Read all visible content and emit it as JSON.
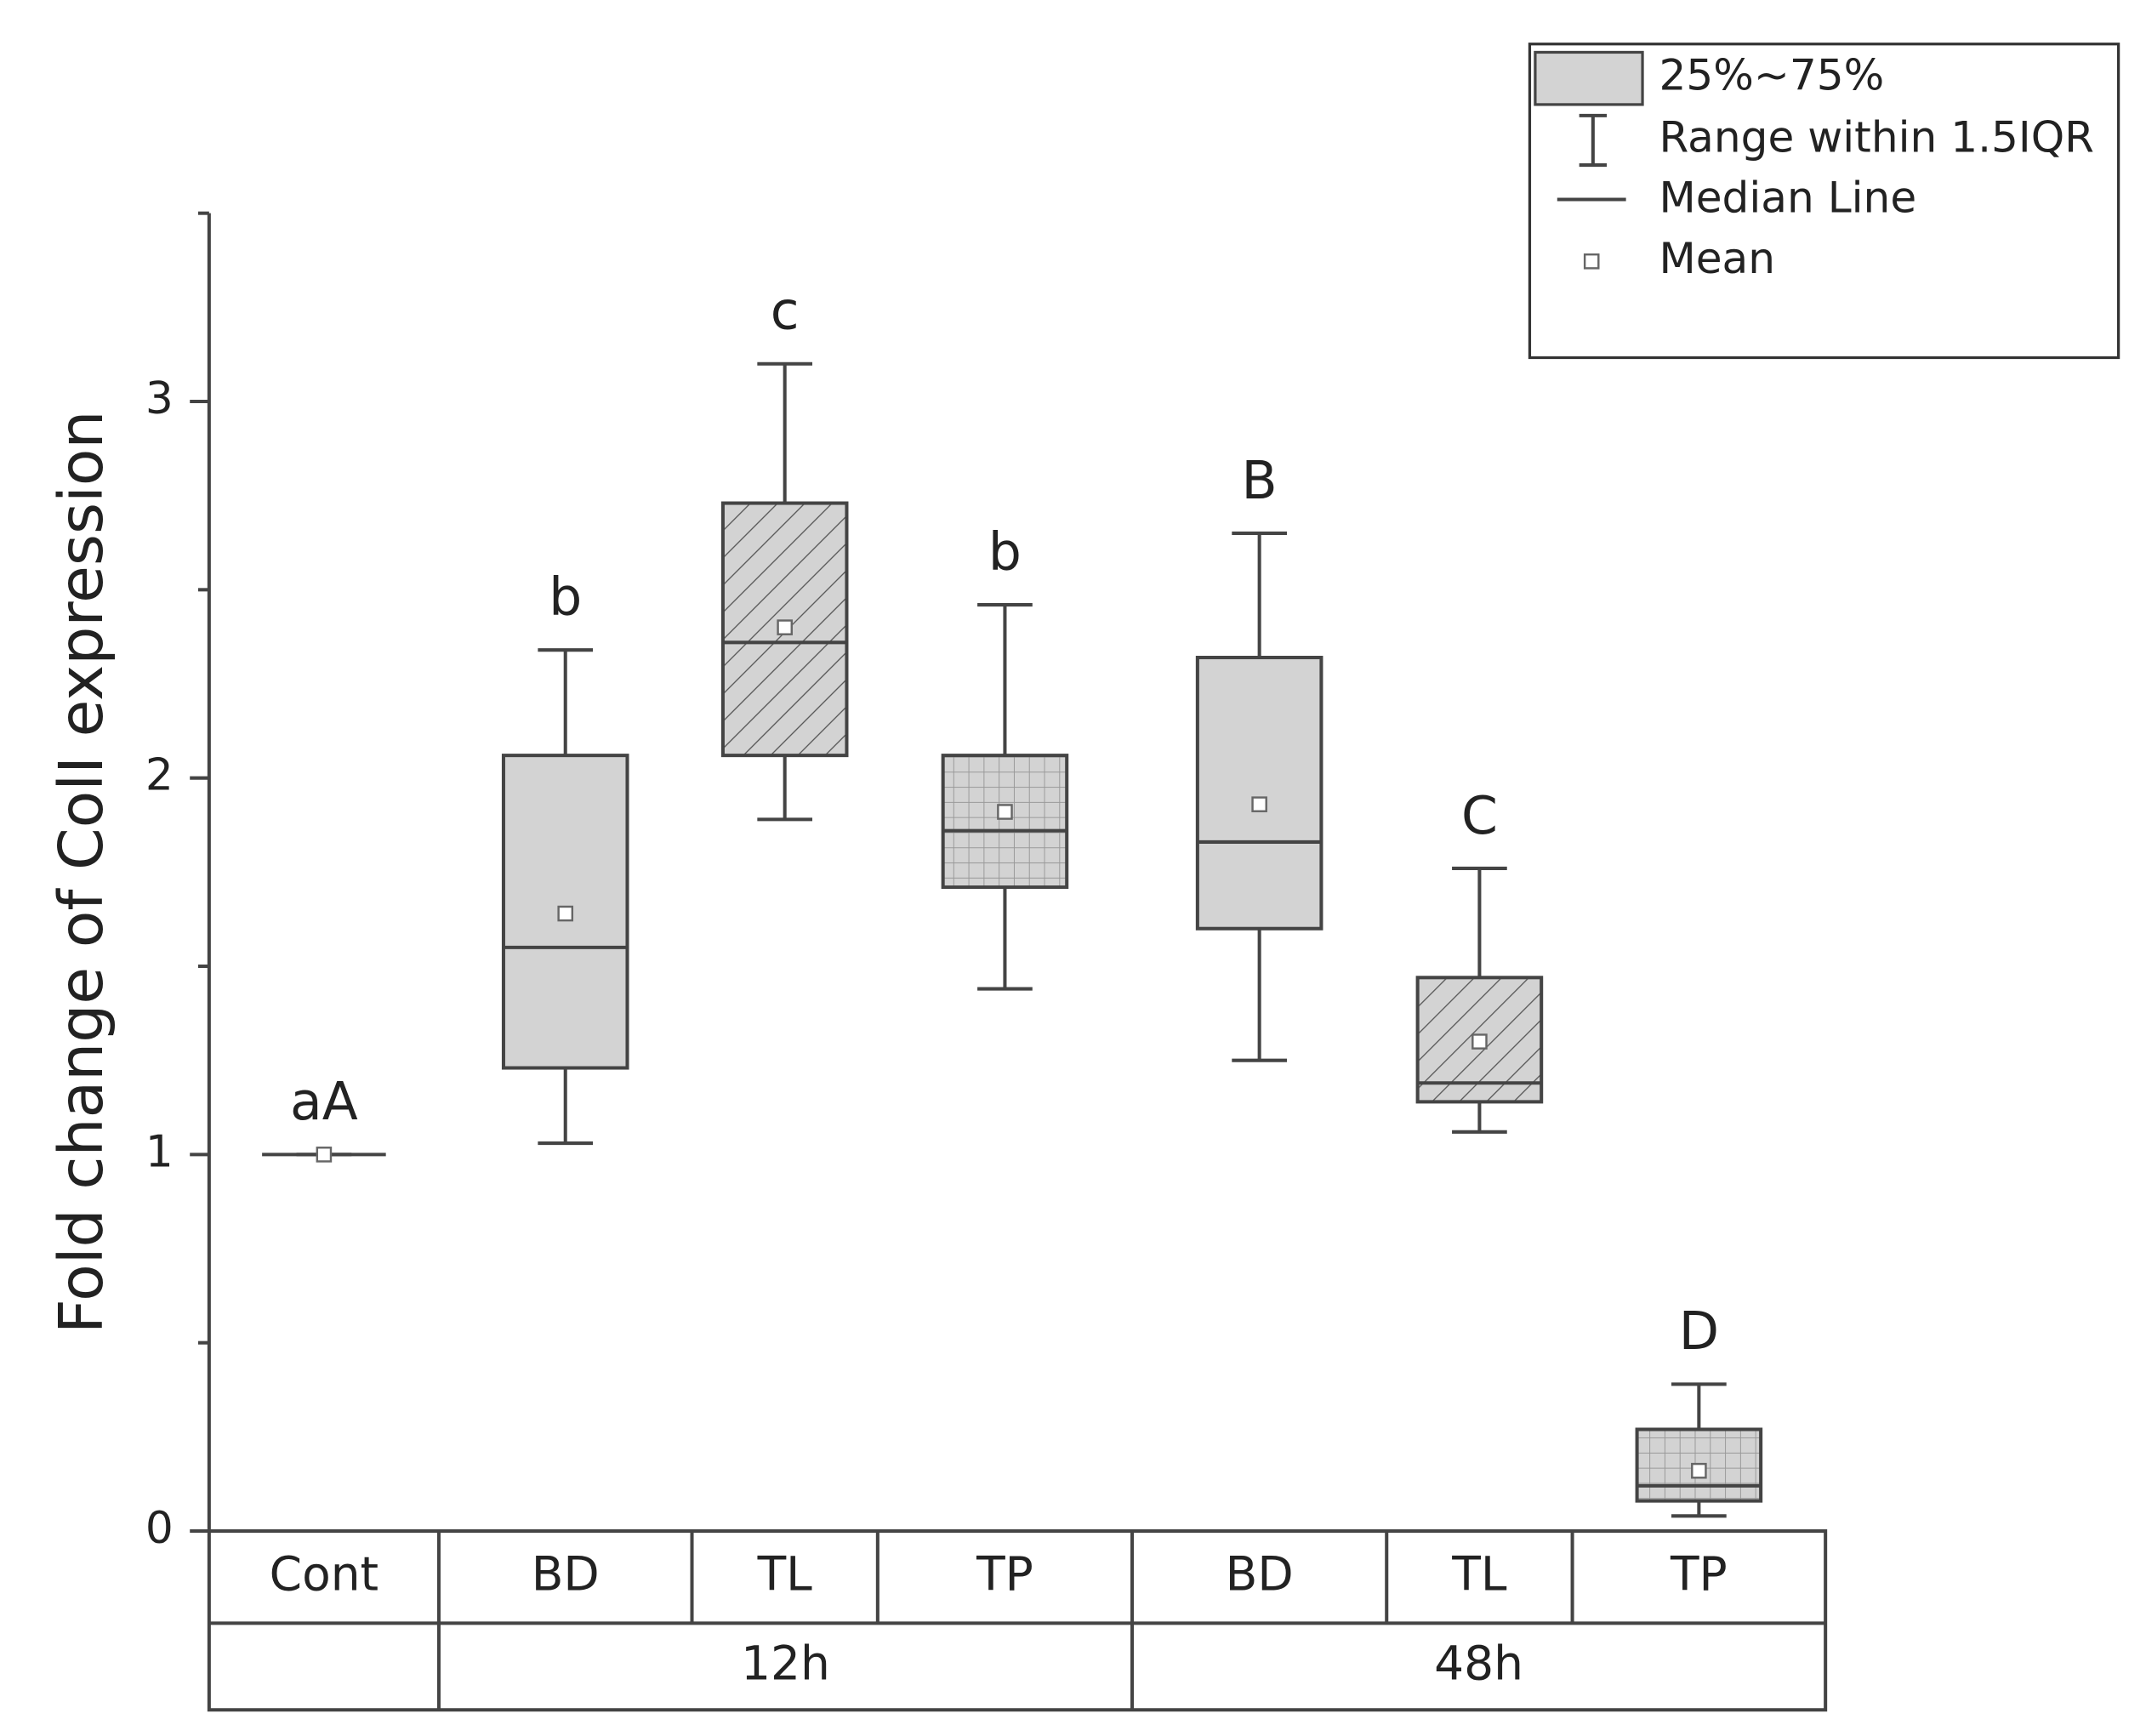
{
  "chart_data": {
    "type": "box",
    "y_label": "Fold change of ColI expression",
    "categories": [
      "Cont",
      "BD",
      "TL",
      "TP",
      "BD",
      "TL",
      "TP"
    ],
    "groups": [
      null,
      "12h",
      "12h",
      "12h",
      "48h",
      "48h",
      "48h"
    ],
    "whisker_low": [
      1,
      1.03,
      1.89,
      1.44,
      1.25,
      1.06,
      0.04
    ],
    "q1": [
      1,
      1.23,
      2.06,
      1.71,
      1.6,
      1.14,
      0.08
    ],
    "median": [
      1,
      1.55,
      2.36,
      1.86,
      1.83,
      1.19,
      0.12
    ],
    "q3": [
      1,
      2.06,
      2.73,
      2.06,
      2.32,
      1.47,
      0.27
    ],
    "whisker_high": [
      1,
      2.34,
      3.1,
      2.46,
      2.65,
      1.76,
      0.39
    ],
    "mean": [
      1,
      1.64,
      2.4,
      1.91,
      1.93,
      1.3,
      0.16
    ],
    "letters": [
      "aA",
      "b",
      "c",
      "b",
      "B",
      "C",
      "D"
    ],
    "patterns": [
      "none",
      "none",
      "diagonal",
      "grid",
      "none",
      "diagonal",
      "grid"
    ],
    "fill": "#d3d3d3",
    "ylim": [
      0,
      3.5
    ],
    "yticks": [
      0,
      1,
      2,
      3
    ],
    "minor_yticks": [
      0.5,
      1.5,
      2.5,
      3.5
    ],
    "legend": [
      "25%~75%",
      "Range within 1.5IQR",
      "Median Line",
      "Mean"
    ],
    "legend_position": "top-right"
  }
}
